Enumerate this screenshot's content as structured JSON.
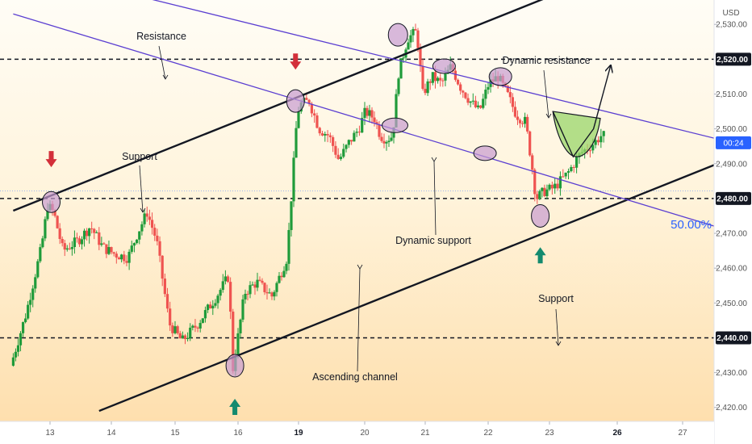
{
  "axis": {
    "currency": "USD",
    "y_ticks": [
      "2,530.00",
      "2,510.00",
      "2,500.00",
      "2,490.00",
      "2,470.00",
      "2,460.00",
      "2,450.00",
      "2,430.00",
      "2,420.00"
    ],
    "y_tick_values": [
      2530,
      2510,
      2500,
      2490,
      2470,
      2460,
      2450,
      2430,
      2420
    ],
    "x_ticks": [
      {
        "label": "13",
        "day": 0,
        "bold": false
      },
      {
        "label": "14",
        "day": 1,
        "bold": false
      },
      {
        "label": "15",
        "day": 2,
        "bold": false
      },
      {
        "label": "16",
        "day": 3,
        "bold": false
      },
      {
        "label": "19",
        "day": 4,
        "bold": true
      },
      {
        "label": "20",
        "day": 5,
        "bold": false
      },
      {
        "label": "21",
        "day": 6,
        "bold": false
      },
      {
        "label": "22",
        "day": 7,
        "bold": false
      },
      {
        "label": "23",
        "day": 8,
        "bold": false
      },
      {
        "label": "26",
        "day": 9,
        "bold": true
      },
      {
        "label": "27",
        "day": 10,
        "bold": false
      }
    ]
  },
  "price_tags": {
    "resistance": "2,520.00",
    "support": "2,480.00",
    "lower_support": "2,440.00",
    "current_time": "00:24",
    "fib": "50.00%"
  },
  "annotations": {
    "resistance_top": "Resistance",
    "support_left": "Support",
    "dynamic_resistance": "Dynamic resistance",
    "dynamic_support": "Dynamic support",
    "support_lower": "Support",
    "ascending_channel": "Ascending channel"
  },
  "colors": {
    "bull": "#26a69a",
    "bullStrong": "#1f9b3a",
    "bear": "#ef5350",
    "channel": "#131722",
    "dynamic": "#5b3fd1",
    "circle_fill": "#c79bd0",
    "green_zone": "#9ad66a",
    "arrow_down": "#d32f3a",
    "arrow_up": "#138a6e",
    "fib_text": "#2962ff",
    "price_tag_bg": "#131722",
    "current_tag_bg": "#2962ff"
  },
  "chart_data": {
    "type": "candlestick",
    "symbol_currency": "USD",
    "ylim": [
      2416,
      2537
    ],
    "levels": {
      "resistance": 2520,
      "support": 2480,
      "lower_support": 2440,
      "fib_50": 2481.5
    },
    "channel": {
      "upper": {
        "start": [
          -0.6,
          2476.5
        ],
        "end": [
          8.0,
          2538
        ]
      },
      "lower": {
        "start": [
          0.8,
          2419
        ],
        "end": [
          11.2,
          2495
        ]
      }
    },
    "dynamic_lines": {
      "upper": {
        "start": [
          -0.6,
          2547
        ],
        "end": [
          11.2,
          2494
        ]
      },
      "lower": {
        "start": [
          -0.6,
          2533
        ],
        "end": [
          11.2,
          2468
        ]
      }
    },
    "forecast_path": [
      [
        8.05,
        2505
      ],
      [
        8.35,
        2492
      ],
      [
        8.65,
        2500
      ],
      [
        8.9,
        2518
      ]
    ],
    "price_path": [
      [
        -0.6,
        2432
      ],
      [
        -0.35,
        2447
      ],
      [
        -0.1,
        2466
      ],
      [
        0.0,
        2478
      ],
      [
        0.1,
        2476
      ],
      [
        0.25,
        2465
      ],
      [
        0.5,
        2468
      ],
      [
        0.7,
        2472
      ],
      [
        0.9,
        2466
      ],
      [
        1.1,
        2464
      ],
      [
        1.3,
        2463
      ],
      [
        1.45,
        2470
      ],
      [
        1.6,
        2476
      ],
      [
        1.75,
        2468
      ],
      [
        1.95,
        2444
      ],
      [
        2.15,
        2439
      ],
      [
        2.4,
        2444
      ],
      [
        2.7,
        2452
      ],
      [
        2.9,
        2458
      ],
      [
        2.95,
        2430
      ],
      [
        3.15,
        2453
      ],
      [
        3.35,
        2456
      ],
      [
        3.6,
        2452
      ],
      [
        3.85,
        2463
      ],
      [
        4.0,
        2500
      ],
      [
        4.05,
        2507
      ],
      [
        4.2,
        2508
      ],
      [
        4.35,
        2500
      ],
      [
        4.5,
        2498
      ],
      [
        4.65,
        2491
      ],
      [
        4.8,
        2496
      ],
      [
        4.95,
        2500
      ],
      [
        5.05,
        2505
      ],
      [
        5.2,
        2503
      ],
      [
        5.3,
        2498
      ],
      [
        5.4,
        2497
      ],
      [
        5.5,
        2498
      ],
      [
        5.6,
        2516
      ],
      [
        5.75,
        2526
      ],
      [
        5.9,
        2528
      ],
      [
        6.0,
        2510
      ],
      [
        6.15,
        2515
      ],
      [
        6.3,
        2513
      ],
      [
        6.45,
        2518
      ],
      [
        6.6,
        2512
      ],
      [
        6.75,
        2508
      ],
      [
        6.9,
        2505
      ],
      [
        7.05,
        2513
      ],
      [
        7.2,
        2515
      ],
      [
        7.35,
        2510
      ],
      [
        7.5,
        2504
      ],
      [
        7.65,
        2502
      ],
      [
        7.75,
        2490
      ],
      [
        7.82,
        2480
      ],
      [
        7.95,
        2482
      ],
      [
        8.1,
        2483
      ],
      [
        8.3,
        2487
      ],
      [
        8.5,
        2493
      ],
      [
        8.7,
        2496
      ],
      [
        8.8,
        2498
      ]
    ]
  }
}
